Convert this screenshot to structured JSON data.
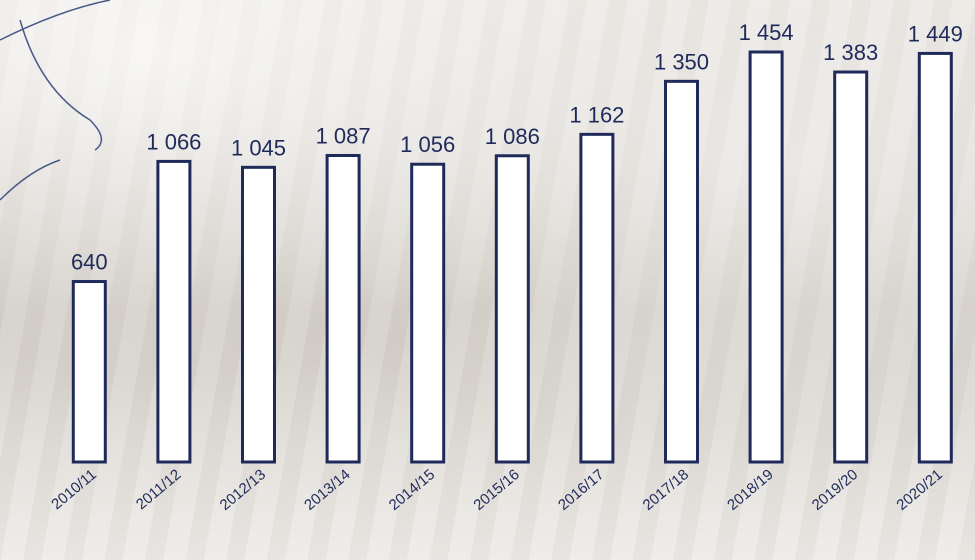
{
  "chart_data": {
    "type": "bar",
    "categories": [
      "2010/11",
      "2011/12",
      "2012/13",
      "2013/14",
      "2014/15",
      "2015/16",
      "2016/17",
      "2017/18",
      "2018/19",
      "2019/20",
      "2020/21"
    ],
    "values": [
      640,
      1066,
      1045,
      1087,
      1056,
      1086,
      1162,
      1350,
      1454,
      1383,
      1449
    ],
    "value_labels": [
      "640",
      "1 066",
      "1 045",
      "1 087",
      "1 056",
      "1 086",
      "1 162",
      "1 350",
      "1 454",
      "1 383",
      "1 449"
    ],
    "color": "#ffffff",
    "edge_color": "#1f2a5a"
  }
}
